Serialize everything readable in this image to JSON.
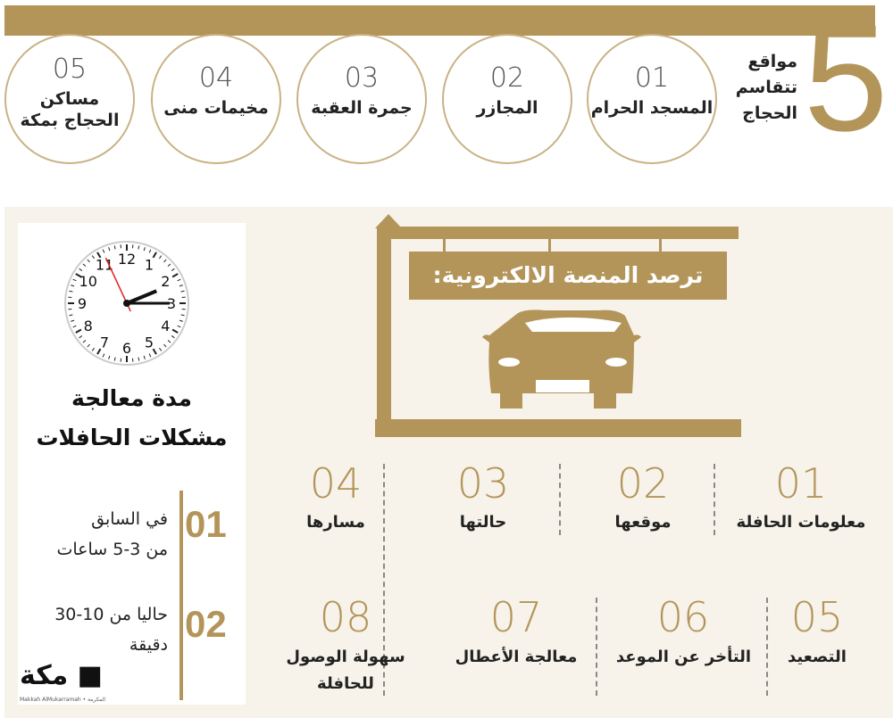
{
  "colors": {
    "accent": "#b3955a",
    "panel_bg": "#f7f3ea"
  },
  "header": {
    "big_number": "5",
    "title_lines": [
      "مواقع",
      "تتقاسم",
      "الحجاج"
    ]
  },
  "sites": [
    {
      "num": "01",
      "label": "المسجد الحرام"
    },
    {
      "num": "02",
      "label": "المجازر"
    },
    {
      "num": "03",
      "label": "جمرة العقبة"
    },
    {
      "num": "04",
      "label": "مخيمات منى"
    },
    {
      "num": "05",
      "label": "مساكن الحجاج بمكة"
    }
  ],
  "sign": {
    "text": "ترصد المنصة الالكترونية:"
  },
  "features": [
    {
      "num": "01",
      "label": "معلومات الحافلة"
    },
    {
      "num": "02",
      "label": "موقعها"
    },
    {
      "num": "03",
      "label": "حالتها"
    },
    {
      "num": "04",
      "label": "مسارها"
    },
    {
      "num": "05",
      "label": "التصعيد"
    },
    {
      "num": "06",
      "label": "التأخر عن الموعد"
    },
    {
      "num": "07",
      "label": "معالجة الأعطال"
    },
    {
      "num": "08",
      "label": "سهولة الوصول للحافلة"
    }
  ],
  "processing": {
    "title_lines": [
      "مدة معالجة",
      "مشكلات الحافلات"
    ],
    "clock": {
      "time": "2:15",
      "numerals": [
        "12",
        "1",
        "2",
        "3",
        "4",
        "5",
        "6",
        "7",
        "8",
        "9",
        "10",
        "11"
      ]
    },
    "items": [
      {
        "num": "01",
        "lines": [
          "في السابق",
          "من 3-5 ساعات"
        ]
      },
      {
        "num": "02",
        "lines": [
          "حاليا من 10-30",
          "دقيقة"
        ]
      }
    ]
  },
  "logo": {
    "text": "مكة",
    "subtitle": "Makkah AlMukarramah • المكرمة"
  }
}
